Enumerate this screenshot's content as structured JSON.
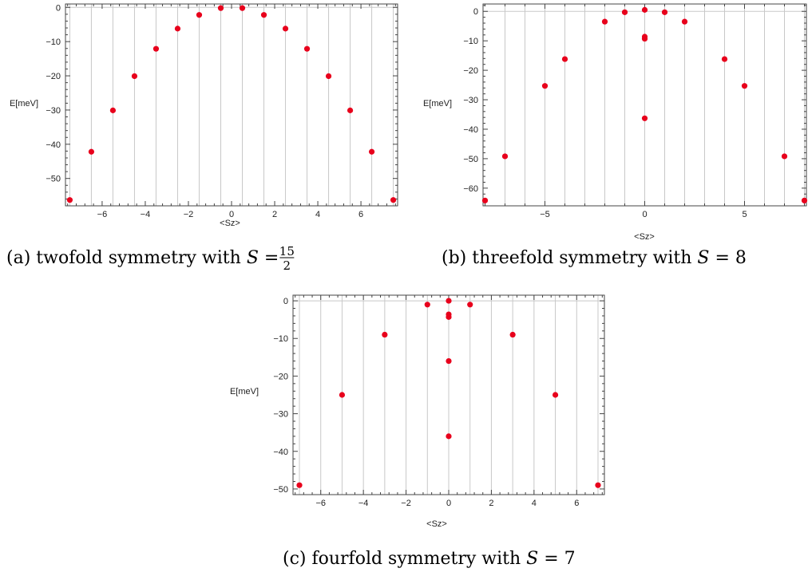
{
  "chart_data": [
    {
      "type": "scatter",
      "xlabel": "<Sz>",
      "ylabel": "E[meV]",
      "xlim": [
        -7.7,
        7.7
      ],
      "ylim": [
        -58,
        1
      ],
      "xticks": [
        -6,
        -4,
        -2,
        0,
        2,
        4,
        6
      ],
      "yticks": [
        0,
        -10,
        -20,
        -30,
        -40,
        -50
      ],
      "x_gridlines": [
        -7.5,
        -6.5,
        -5.5,
        -4.5,
        -3.5,
        -2.5,
        -1.5,
        -0.5,
        0.5,
        1.5,
        2.5,
        3.5,
        4.5,
        5.5,
        6.5,
        7.5
      ],
      "points": [
        {
          "x": -7.5,
          "y": -56.3
        },
        {
          "x": -6.5,
          "y": -42.2
        },
        {
          "x": -5.5,
          "y": -30.1
        },
        {
          "x": -4.5,
          "y": -20.1
        },
        {
          "x": -3.5,
          "y": -12.1
        },
        {
          "x": -2.5,
          "y": -6.2
        },
        {
          "x": -1.5,
          "y": -2.2
        },
        {
          "x": -0.5,
          "y": -0.2
        },
        {
          "x": 0.5,
          "y": -0.2
        },
        {
          "x": 1.5,
          "y": -2.2
        },
        {
          "x": 2.5,
          "y": -6.2
        },
        {
          "x": 3.5,
          "y": -12.1
        },
        {
          "x": 4.5,
          "y": -20.1
        },
        {
          "x": 5.5,
          "y": -30.1
        },
        {
          "x": 6.5,
          "y": -42.2
        },
        {
          "x": 7.5,
          "y": -56.3
        }
      ],
      "point_color": "#e8001c",
      "caption": {
        "prefix": "(a) twofold symmetry with",
        "var": "S",
        "eq": " = ",
        "num": "15",
        "den": "2"
      }
    },
    {
      "type": "scatter",
      "xlabel": "<Sz>",
      "ylabel": "E[meV]",
      "xlim": [
        -8.1,
        8.1
      ],
      "ylim": [
        -66,
        2.5
      ],
      "xticks": [
        -5,
        0,
        5
      ],
      "yticks": [
        0,
        -10,
        -20,
        -30,
        -40,
        -50,
        -60
      ],
      "x_gridlines": [
        -7,
        -6,
        -5,
        -4,
        -3,
        -2,
        -1,
        0,
        1,
        2,
        3,
        4,
        5,
        6,
        7,
        8
      ],
      "points": [
        {
          "x": -8,
          "y": -64.2
        },
        {
          "x": -7,
          "y": -49.2
        },
        {
          "x": -5,
          "y": -25.3
        },
        {
          "x": -4,
          "y": -16.2
        },
        {
          "x": -2,
          "y": -3.5
        },
        {
          "x": -1,
          "y": -0.3
        },
        {
          "x": 0,
          "y": 0.5
        },
        {
          "x": 0,
          "y": -8.6
        },
        {
          "x": 0,
          "y": -9.3
        },
        {
          "x": 0,
          "y": -36.3
        },
        {
          "x": 1,
          "y": -0.3
        },
        {
          "x": 2,
          "y": -3.5
        },
        {
          "x": 4,
          "y": -16.2
        },
        {
          "x": 5,
          "y": -25.3
        },
        {
          "x": 7,
          "y": -49.2
        },
        {
          "x": 8,
          "y": -64.2
        }
      ],
      "point_color": "#e8001c",
      "caption": {
        "prefix": "(b) threefold symmetry with",
        "var": "S",
        "eq": " = 8",
        "num": "",
        "den": ""
      }
    },
    {
      "type": "scatter",
      "xlabel": "<Sz>",
      "ylabel": "E[meV]",
      "xlim": [
        -7.3,
        7.3
      ],
      "ylim": [
        -51.5,
        1.5
      ],
      "xticks": [
        -6,
        -4,
        -2,
        0,
        2,
        4,
        6
      ],
      "yticks": [
        0,
        -10,
        -20,
        -30,
        -40,
        -50
      ],
      "x_gridlines": [
        -7,
        -6,
        -5,
        -4,
        -3,
        -2,
        -1,
        0,
        1,
        2,
        3,
        4,
        5,
        6,
        7
      ],
      "points": [
        {
          "x": -7,
          "y": -49
        },
        {
          "x": -5,
          "y": -25
        },
        {
          "x": -3,
          "y": -9
        },
        {
          "x": -1,
          "y": -1
        },
        {
          "x": 0,
          "y": 0
        },
        {
          "x": 0,
          "y": -3.6
        },
        {
          "x": 0,
          "y": -4.3
        },
        {
          "x": 0,
          "y": -16
        },
        {
          "x": 0,
          "y": -36
        },
        {
          "x": 1,
          "y": -1
        },
        {
          "x": 3,
          "y": -9
        },
        {
          "x": 5,
          "y": -25
        },
        {
          "x": 7,
          "y": -49
        }
      ],
      "point_color": "#e8001c",
      "caption": {
        "prefix": "(c) fourfold symmetry with",
        "var": "S",
        "eq": " = 7",
        "num": "",
        "den": ""
      }
    }
  ]
}
